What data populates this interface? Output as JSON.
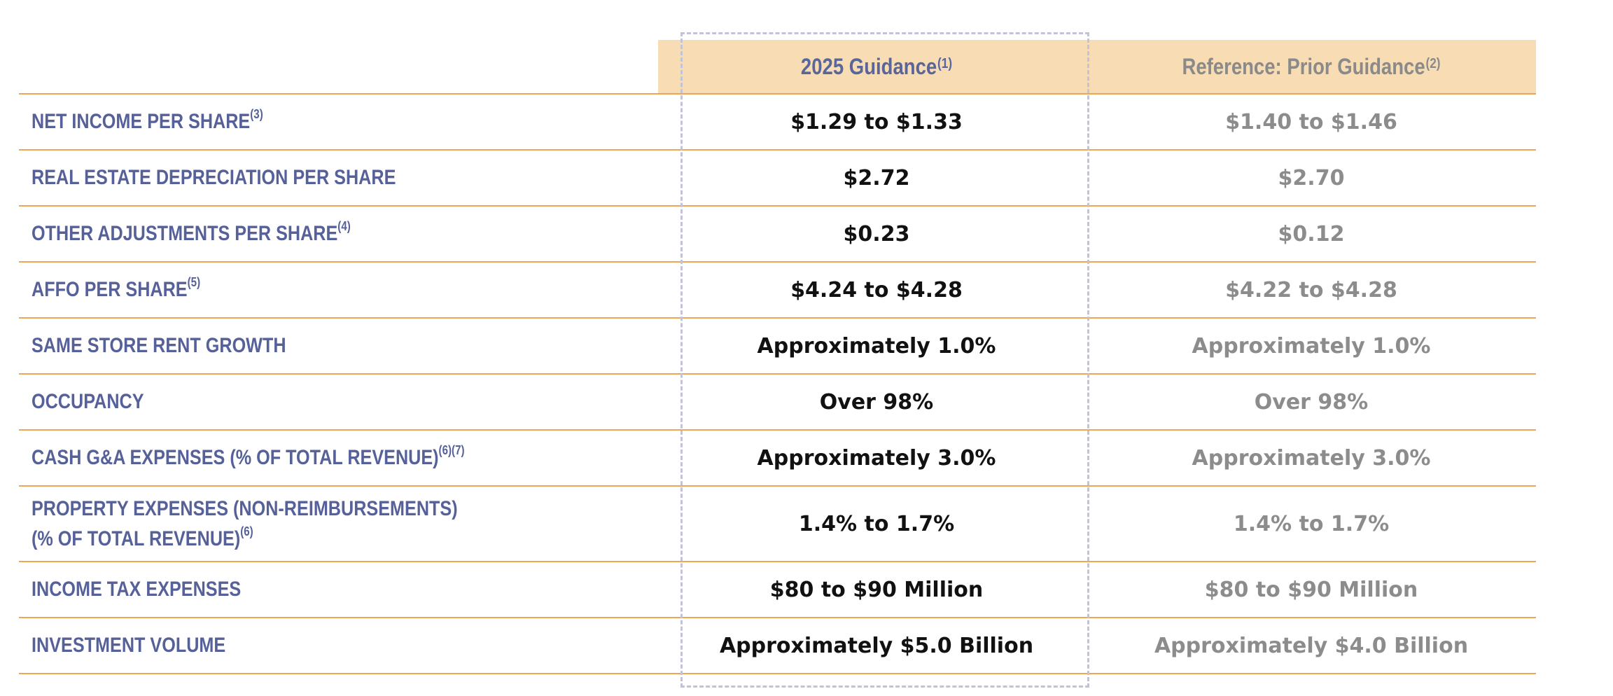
{
  "header": {
    "guidance_label": "2025 Guidance",
    "guidance_note": "(1)",
    "prior_label": "Reference:  Prior Guidance",
    "prior_note": "(2)"
  },
  "rows": [
    {
      "label": "NET INCOME PER SHARE",
      "note": "(3)",
      "guidance": "$1.29 to $1.33",
      "prior": "$1.40 to $1.46"
    },
    {
      "label": "REAL ESTATE DEPRECIATION PER SHARE",
      "note": "",
      "guidance": "$2.72",
      "prior": "$2.70"
    },
    {
      "label": "OTHER ADJUSTMENTS PER SHARE",
      "note": "(4)",
      "guidance": "$0.23",
      "prior": "$0.12"
    },
    {
      "label": "AFFO PER SHARE",
      "note": "(5)",
      "guidance": "$4.24 to $4.28",
      "prior": "$4.22 to $4.28"
    },
    {
      "label": "SAME STORE RENT GROWTH",
      "note": "",
      "guidance": "Approximately 1.0%",
      "prior": "Approximately 1.0%"
    },
    {
      "label": "OCCUPANCY",
      "note": "",
      "guidance": "Over 98%",
      "prior": "Over 98%"
    },
    {
      "label": "CASH G&A EXPENSES (% OF TOTAL REVENUE)",
      "note": "(6)(7)",
      "guidance": "Approximately 3.0%",
      "prior": "Approximately 3.0%"
    },
    {
      "label": "PROPERTY EXPENSES (NON-REIMBURSEMENTS)",
      "label_line2": "(% OF TOTAL REVENUE)",
      "note": "(6)",
      "guidance": "1.4% to 1.7%",
      "prior": "1.4% to 1.7%"
    },
    {
      "label": "INCOME TAX EXPENSES",
      "note": "",
      "guidance": "$80 to $90 Million",
      "prior": "$80 to $90 Million"
    },
    {
      "label": "INVESTMENT VOLUME",
      "note": "",
      "guidance": "Approximately $5.0 Billion",
      "prior": "Approximately $4.0 Billion"
    }
  ],
  "colors": {
    "header_band": "#f8dcb4",
    "label_text": "#56619a",
    "rule": "#f0a552",
    "prior_text": "#8c8c8c",
    "guidance_text": "#111111",
    "highlight_border": "#c3c3d8"
  }
}
